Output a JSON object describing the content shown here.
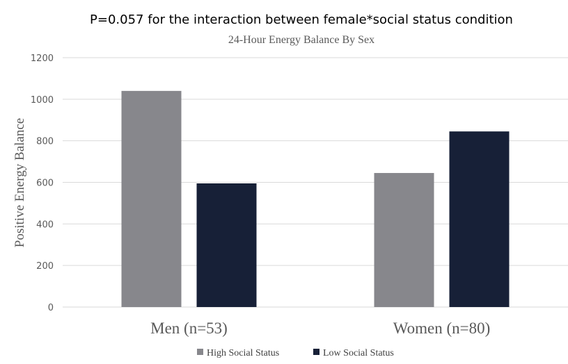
{
  "chart_data": {
    "type": "bar",
    "title": "P=0.057 for the interaction between female*social status condition",
    "subtitle": "24-Hour Energy Balance By Sex",
    "ylabel": "Positive Energy Balance",
    "xlabel": "",
    "ylim": [
      0,
      1200
    ],
    "yticks": [
      0,
      200,
      400,
      600,
      800,
      1000,
      1200
    ],
    "grid": true,
    "legend_position": "bottom",
    "categories": [
      "Men (n=53)",
      "Women (n=80)"
    ],
    "series": [
      {
        "name": "High Social Status",
        "color": "#87878c",
        "values": [
          1040,
          645
        ]
      },
      {
        "name": "Low Social Status",
        "color": "#172037",
        "values": [
          595,
          845
        ]
      }
    ]
  }
}
